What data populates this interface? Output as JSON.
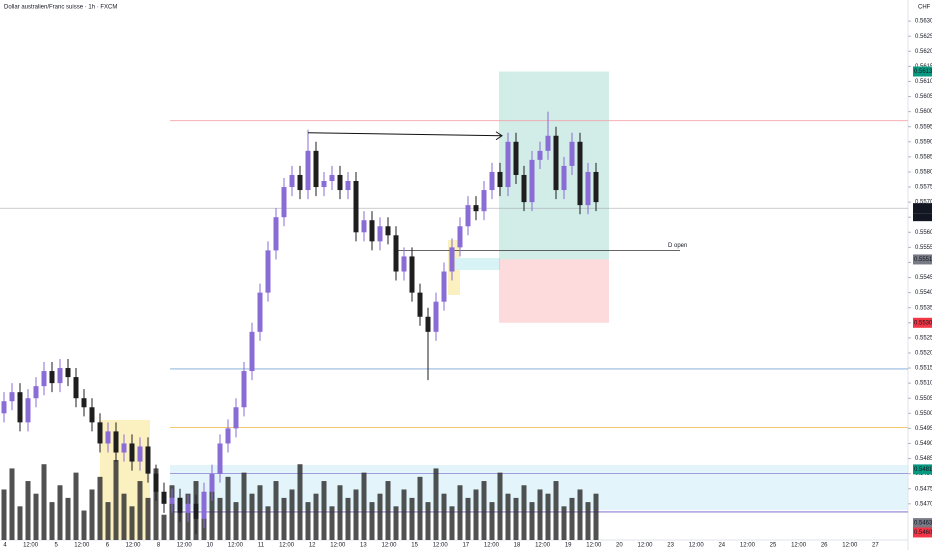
{
  "chart_data": {
    "type": "candlestick",
    "title": "Dollar australien/Franc suisse · 1h · FXCM",
    "currency": "CHF",
    "ylim": [
      0.5458,
      0.5637
    ],
    "yticks": [
      {
        "value": 0.563,
        "label": "0.56300"
      },
      {
        "value": 0.5625,
        "label": "0.56250"
      },
      {
        "value": 0.562,
        "label": "0.56200"
      },
      {
        "value": 0.5615,
        "label": "0.56150"
      },
      {
        "value": 0.561,
        "label": "0.56100"
      },
      {
        "value": 0.5605,
        "label": "0.56050"
      },
      {
        "value": 0.56,
        "label": "0.56000"
      },
      {
        "value": 0.5595,
        "label": "0.55950"
      },
      {
        "value": 0.559,
        "label": "0.55900"
      },
      {
        "value": 0.5585,
        "label": "0.55850"
      },
      {
        "value": 0.558,
        "label": "0.55800"
      },
      {
        "value": 0.5575,
        "label": "0.55750"
      },
      {
        "value": 0.557,
        "label": "0.55700"
      },
      {
        "value": 0.5565,
        "label": "0.55650"
      },
      {
        "value": 0.556,
        "label": "0.55600"
      },
      {
        "value": 0.5555,
        "label": "0.55550"
      },
      {
        "value": 0.555,
        "label": "0.55500"
      },
      {
        "value": 0.5545,
        "label": "0.55450"
      },
      {
        "value": 0.554,
        "label": "0.55400"
      },
      {
        "value": 0.5535,
        "label": "0.55350"
      },
      {
        "value": 0.553,
        "label": "0.55300"
      },
      {
        "value": 0.5525,
        "label": "0.55250"
      },
      {
        "value": 0.552,
        "label": "0.55200"
      },
      {
        "value": 0.5515,
        "label": "0.55150"
      },
      {
        "value": 0.551,
        "label": "0.55100"
      },
      {
        "value": 0.5505,
        "label": "0.55050"
      },
      {
        "value": 0.55,
        "label": "0.55000"
      },
      {
        "value": 0.5495,
        "label": "0.54950"
      },
      {
        "value": 0.549,
        "label": "0.54900"
      },
      {
        "value": 0.5485,
        "label": "0.54850"
      },
      {
        "value": 0.548,
        "label": "0.54800"
      },
      {
        "value": 0.5475,
        "label": "0.54750"
      },
      {
        "value": 0.547,
        "label": "0.54700"
      }
    ],
    "time_labels": [
      "4",
      "12:00",
      "5",
      "12:00",
      "6",
      "12:00",
      "8",
      "12:00",
      "10",
      "12:00",
      "11",
      "12:00",
      "12",
      "12:00",
      "13",
      "12:00",
      "15",
      "12:00",
      "17",
      "12:00",
      "18",
      "12:00",
      "19",
      "12:00",
      "20",
      "12:00",
      "23",
      "12:00",
      "24",
      "12:00",
      "25",
      "12:00",
      "26",
      "12:00",
      "27"
    ],
    "up_color": "#8a6cd6",
    "down_color": "#1e1e1e",
    "volume_color": "#333333",
    "open": [
      0.55,
      0.5504,
      0.5507,
      0.5497,
      0.5505,
      0.5509,
      0.5514,
      0.551,
      0.5515,
      0.5512,
      0.5505,
      0.5502,
      0.5497,
      0.549,
      0.5494,
      0.5487,
      0.549,
      0.5484,
      0.5489,
      0.548,
      0.5474,
      0.547,
      0.5472,
      0.5467,
      0.547,
      0.5465,
      0.5474,
      0.548,
      0.549,
      0.5495,
      0.5502,
      0.5514,
      0.5527,
      0.554,
      0.5554,
      0.5565,
      0.5575,
      0.5579,
      0.5574,
      0.5587,
      0.5575,
      0.5577,
      0.5579,
      0.5574,
      0.5577,
      0.556,
      0.5564,
      0.5557,
      0.5562,
      0.5559,
      0.5547,
      0.5552,
      0.554,
      0.5532,
      0.5527,
      0.5537,
      0.5547,
      0.5555,
      0.5562,
      0.5569,
      0.5567,
      0.5574,
      0.558,
      0.5575,
      0.559,
      0.5579,
      0.557,
      0.5584,
      0.5587,
      0.5592,
      0.5574,
      0.5582,
      0.559,
      0.5569,
      0.558
    ],
    "high": [
      0.5507,
      0.551,
      0.551,
      0.5508,
      0.5512,
      0.5517,
      0.5517,
      0.5518,
      0.5518,
      0.5515,
      0.5508,
      0.5505,
      0.55,
      0.5497,
      0.5497,
      0.5493,
      0.5493,
      0.5492,
      0.5492,
      0.5483,
      0.5477,
      0.5475,
      0.5475,
      0.5473,
      0.5473,
      0.5477,
      0.5483,
      0.5493,
      0.5498,
      0.5505,
      0.5517,
      0.553,
      0.5543,
      0.5557,
      0.5568,
      0.5578,
      0.5582,
      0.5582,
      0.5594,
      0.559,
      0.558,
      0.5582,
      0.5582,
      0.558,
      0.558,
      0.5567,
      0.5567,
      0.5565,
      0.5565,
      0.5562,
      0.5555,
      0.5555,
      0.5543,
      0.5535,
      0.554,
      0.555,
      0.5558,
      0.5565,
      0.5572,
      0.5572,
      0.5577,
      0.5583,
      0.5583,
      0.5593,
      0.5593,
      0.5582,
      0.5587,
      0.559,
      0.56,
      0.5595,
      0.5585,
      0.5593,
      0.5593,
      0.5583,
      0.5583
    ],
    "low": [
      0.5497,
      0.5501,
      0.5494,
      0.5494,
      0.5502,
      0.5506,
      0.5507,
      0.5507,
      0.5509,
      0.5502,
      0.5499,
      0.5494,
      0.5487,
      0.5487,
      0.5484,
      0.5484,
      0.5481,
      0.5481,
      0.5477,
      0.5471,
      0.5467,
      0.5467,
      0.5464,
      0.5464,
      0.546,
      0.5462,
      0.5471,
      0.5477,
      0.5487,
      0.5492,
      0.5499,
      0.5511,
      0.5524,
      0.5537,
      0.5551,
      0.5562,
      0.5572,
      0.5571,
      0.5571,
      0.5572,
      0.5572,
      0.5574,
      0.5571,
      0.5571,
      0.5557,
      0.5557,
      0.5554,
      0.5554,
      0.5556,
      0.5544,
      0.5544,
      0.5537,
      0.5529,
      0.5511,
      0.5524,
      0.5534,
      0.5544,
      0.5552,
      0.5559,
      0.5564,
      0.5564,
      0.5571,
      0.5572,
      0.5572,
      0.5576,
      0.5567,
      0.5567,
      0.5581,
      0.5584,
      0.5571,
      0.5571,
      0.5579,
      0.5566,
      0.5566,
      0.5567
    ],
    "close": [
      0.5504,
      0.5507,
      0.5497,
      0.5505,
      0.5509,
      0.5514,
      0.551,
      0.5515,
      0.5512,
      0.5505,
      0.5502,
      0.5497,
      0.549,
      0.5494,
      0.5487,
      0.549,
      0.5484,
      0.5489,
      0.548,
      0.5474,
      0.547,
      0.5472,
      0.5467,
      0.547,
      0.5465,
      0.5474,
      0.548,
      0.549,
      0.5495,
      0.5502,
      0.5514,
      0.5527,
      0.554,
      0.5554,
      0.5565,
      0.5575,
      0.5579,
      0.5574,
      0.5587,
      0.5575,
      0.5577,
      0.5579,
      0.5574,
      0.5577,
      0.556,
      0.5564,
      0.5557,
      0.5562,
      0.5559,
      0.5547,
      0.5552,
      0.554,
      0.5532,
      0.5527,
      0.5537,
      0.5547,
      0.5555,
      0.5562,
      0.5569,
      0.5567,
      0.5574,
      0.558,
      0.5575,
      0.559,
      0.5579,
      0.557,
      0.5584,
      0.5587,
      0.5592,
      0.5574,
      0.5582,
      0.559,
      0.5569,
      0.558,
      0.557
    ],
    "volume": [
      60,
      85,
      40,
      70,
      55,
      90,
      45,
      65,
      50,
      80,
      35,
      60,
      75,
      45,
      95,
      55,
      40,
      70,
      50,
      85,
      30,
      65,
      45,
      55,
      70,
      40,
      60,
      50,
      75,
      45,
      80,
      55,
      65,
      40,
      70,
      50,
      60,
      90,
      45,
      55,
      70,
      40,
      65,
      50,
      60,
      80,
      45,
      55,
      70,
      40,
      60,
      50,
      75,
      45,
      85,
      55,
      40,
      65,
      50,
      60,
      70,
      45,
      80,
      55,
      50,
      65,
      45,
      60,
      55,
      70,
      40,
      50,
      60,
      45,
      55
    ],
    "levels": [
      {
        "price": 0.5597,
        "color": "#f3a4ac"
      },
      {
        "price": 0.55147,
        "color": "#7ea6da"
      },
      {
        "price": 0.54953,
        "color": "#f0b445"
      },
      {
        "price": 0.548,
        "color": "#8c7fd6"
      },
      {
        "price": 0.54673,
        "color": "#6a5acd"
      }
    ],
    "d_open": {
      "label": "D open",
      "price": 0.5554
    },
    "position": {
      "target": 0.56133,
      "entry": 0.5551,
      "stop": 0.553
    },
    "arrow": {
      "from": 0.5593,
      "to": 0.5592
    },
    "price_tags": [
      {
        "value": 0.56133,
        "label": "0.56133",
        "color": "#089981"
      },
      {
        "value": 0.5568,
        "label": "0.55680",
        "color": "#131722"
      },
      {
        "value": 0.5551,
        "label": "0.55510",
        "color": "#787b86"
      },
      {
        "value": 0.553,
        "label": "0.55300",
        "color": "#f23645"
      },
      {
        "value": 0.54814,
        "label": "0.54814",
        "color": "#089981"
      },
      {
        "value": 0.54636,
        "label": "0.54636",
        "color": "#787b86"
      },
      {
        "value": 0.54605,
        "label": "0.54605",
        "color": "#f23645"
      }
    ],
    "countdown": "19:57",
    "current_price": 0.5568
  }
}
